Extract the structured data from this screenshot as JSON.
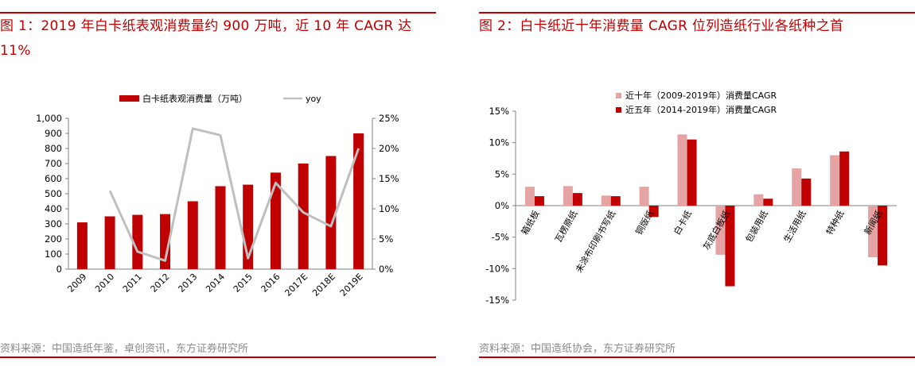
{
  "figure1": {
    "title": "图 1：2019 年白卡纸表观消费量约 900 万吨，近 10 年 CAGR 达 11%",
    "source": "资料来源：中国造纸年鉴，卓创资讯，东方证券研究所",
    "colors": {
      "bar": "#c00000",
      "line": "#bfbfbf",
      "accent": "#c00000"
    }
  },
  "figure2": {
    "title": "图 2：白卡纸近十年消费量 CAGR 位列造纸行业各纸种之首",
    "source": "资料来源：中国造纸协会，东方证券研究所",
    "colors": {
      "series1": "#e6a3a3",
      "series2": "#c00000"
    }
  },
  "chart_data": [
    {
      "type": "bar",
      "categories": [
        "2009",
        "2010",
        "2011",
        "2012",
        "2013",
        "2014",
        "2015",
        "2016",
        "2017E",
        "2018E",
        "2019E"
      ],
      "series": [
        {
          "name": "白卡纸表观消费量（万吨）",
          "type": "bar",
          "axis": "left",
          "values": [
            310,
            350,
            360,
            365,
            450,
            550,
            560,
            640,
            700,
            750,
            900
          ]
        },
        {
          "name": "yoy",
          "type": "line",
          "axis": "right",
          "values": [
            null,
            13.0,
            2.9,
            1.4,
            23.3,
            22.2,
            1.8,
            14.3,
            9.4,
            7.1,
            20.0
          ]
        }
      ],
      "ylim": [
        0,
        1000
      ],
      "yticks": [
        "0",
        "100",
        "200",
        "300",
        "400",
        "500",
        "600",
        "700",
        "800",
        "900",
        "1,000"
      ],
      "y2lim": [
        0,
        25
      ],
      "y2ticks": [
        "0%",
        "5%",
        "10%",
        "15%",
        "20%",
        "25%"
      ],
      "legend_position": "top-center",
      "grid": false
    },
    {
      "type": "bar",
      "categories": [
        "箱纸板",
        "瓦楞原纸",
        "未涂布印刷书写纸",
        "铜版纸",
        "白卡纸",
        "灰底白板纸",
        "包装用纸",
        "生活用纸",
        "特种纸",
        "新闻纸"
      ],
      "series": [
        {
          "name": "近十年（2009-2019年）消费量CAGR",
          "values": [
            3.0,
            3.1,
            1.6,
            3.0,
            11.3,
            -7.8,
            1.8,
            5.9,
            8.0,
            -8.2
          ]
        },
        {
          "name": "近五年（2014-2019年）消费量CAGR",
          "values": [
            1.5,
            2.0,
            1.5,
            -1.8,
            10.5,
            -12.8,
            1.1,
            4.3,
            8.6,
            -9.5
          ]
        }
      ],
      "ylim": [
        -15,
        15
      ],
      "yticks": [
        "-15%",
        "-10%",
        "-5%",
        "0%",
        "5%",
        "10%",
        "15%"
      ],
      "legend_position": "top-center",
      "grid": false
    }
  ]
}
